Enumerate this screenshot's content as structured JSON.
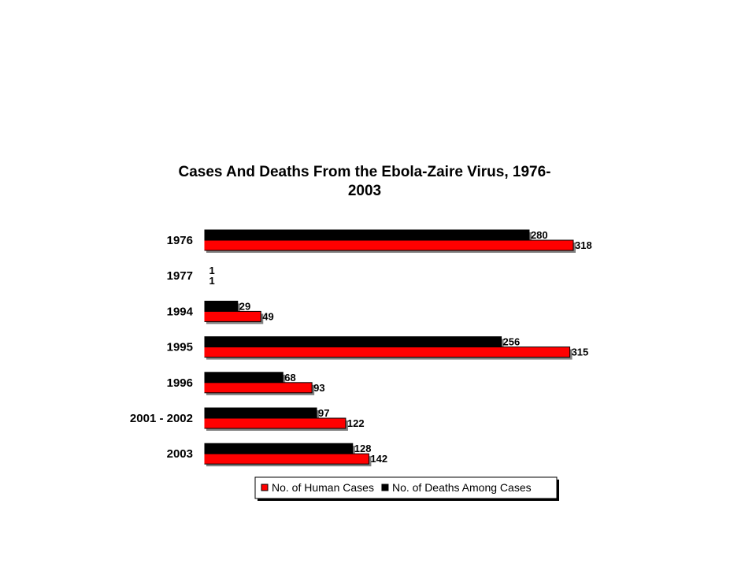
{
  "chart_data": {
    "type": "bar",
    "orientation": "horizontal",
    "title_lines": [
      "Cases And Deaths From the Ebola-Zaire Virus, 1976-",
      "2003"
    ],
    "categories": [
      "1976",
      "1977",
      "1994",
      "1995",
      "1996",
      "2001 - 2002",
      "2003"
    ],
    "series": [
      {
        "name": "No. of Deaths Among Cases",
        "color": "#000000",
        "values": [
          280,
          1,
          29,
          256,
          68,
          97,
          128
        ]
      },
      {
        "name": "No. of Human Cases",
        "color": "#ff0000",
        "values": [
          318,
          1,
          49,
          315,
          93,
          122,
          142
        ]
      }
    ],
    "legend_order": [
      "No. of Human Cases",
      "No. of Deaths Among Cases"
    ],
    "legend_position": "bottom",
    "xlim": [
      0,
      318
    ],
    "grid": false,
    "data_labels": true
  }
}
